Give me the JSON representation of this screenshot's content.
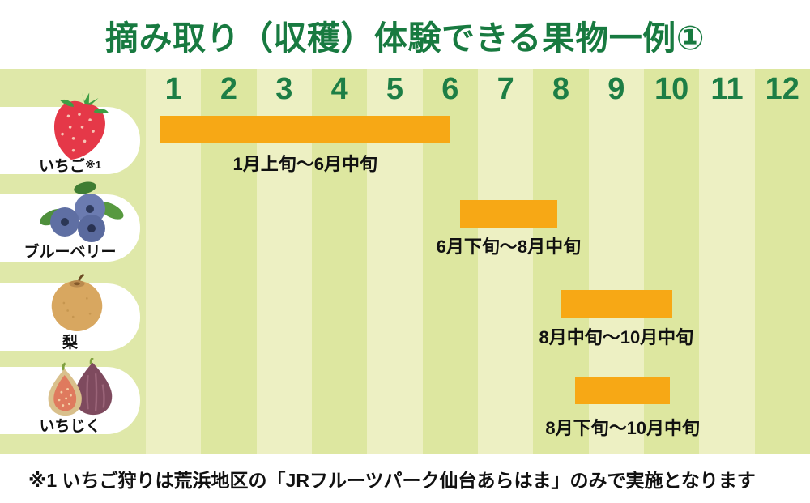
{
  "title": "摘み取り（収穫）体験できる果物一例①",
  "footnote": "※1 いちご狩りは荒浜地区の「JRフルーツパーク仙台あらはま」のみで実施となります",
  "months": [
    "1",
    "2",
    "3",
    "4",
    "5",
    "6",
    "7",
    "8",
    "9",
    "10",
    "11",
    "12"
  ],
  "colors": {
    "title_green": "#187a40",
    "month_number_green": "#1d7e45",
    "bar_orange": "#f7a815",
    "stripe_light": "#edf0c3",
    "stripe_dark": "#dde7a0",
    "left_column_bg": "#dfe8a9",
    "pill_white": "#ffffff",
    "text_black": "#111111"
  },
  "chart_data": {
    "type": "bar",
    "subtype": "gantt-harvest-calendar",
    "title": "摘み取り（収穫）体験できる果物一例①",
    "xlabel": "month",
    "x_ticks": [
      "1",
      "2",
      "3",
      "4",
      "5",
      "6",
      "7",
      "8",
      "9",
      "10",
      "11",
      "12"
    ],
    "x_range": [
      0,
      12
    ],
    "grid": "alternating-month-stripes",
    "legend": "none",
    "rows": [
      {
        "fruit": "いちご",
        "fruit_note": "※1",
        "icon": "strawberry-icon",
        "period_label": "1月上旬〜6月中旬",
        "start_desc": "1月上旬",
        "end_desc": "6月中旬",
        "axis_start": 0.26,
        "axis_end": 5.5
      },
      {
        "fruit": "ブルーベリー",
        "fruit_note": "",
        "icon": "blueberry-icon",
        "period_label": "6月下旬〜8月中旬",
        "start_desc": "6月下旬",
        "end_desc": "8月中旬",
        "axis_start": 5.68,
        "axis_end": 7.43
      },
      {
        "fruit": "梨",
        "fruit_note": "",
        "icon": "pear-icon",
        "period_label": "8月中旬〜10月中旬",
        "start_desc": "8月中旬",
        "end_desc": "10月中旬",
        "axis_start": 7.49,
        "axis_end": 9.51
      },
      {
        "fruit": "いちじく",
        "fruit_note": "",
        "icon": "fig-icon",
        "period_label": "8月下旬〜10月中旬",
        "start_desc": "8月下旬",
        "end_desc": "10月中旬",
        "axis_start": 7.76,
        "axis_end": 9.47
      }
    ]
  }
}
